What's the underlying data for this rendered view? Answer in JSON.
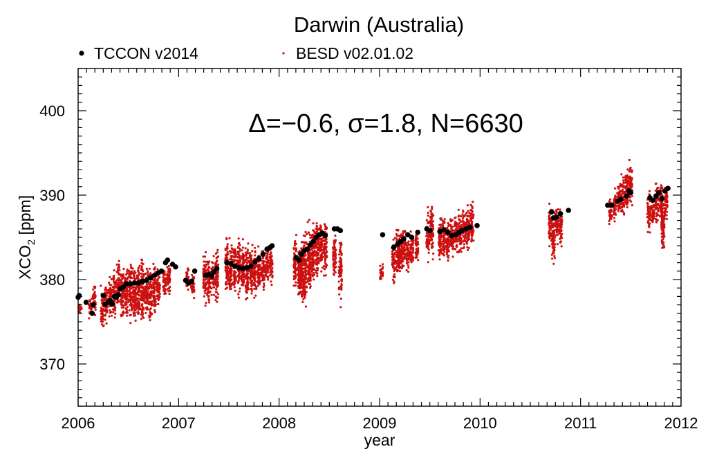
{
  "chart_data": {
    "type": "scatter",
    "title": "Darwin (Australia)",
    "xlabel": "year",
    "ylabel_main": "XCO",
    "ylabel_sub": "2",
    "ylabel_unit": " [ppm]",
    "annotation": "Δ=−0.6, σ=1.8, N=6630",
    "xlim": [
      2006,
      2012
    ],
    "ylim": [
      365,
      405
    ],
    "xticks": [
      2006,
      2007,
      2008,
      2009,
      2010,
      2011,
      2012
    ],
    "yticks": [
      370,
      380,
      390,
      400
    ],
    "legend": {
      "placement": "top-left",
      "entries": [
        "TCCON v2014",
        "BESD v02.01.02"
      ]
    },
    "colors": {
      "tccon": "#000000",
      "besd": "#cc1111"
    },
    "series": [
      {
        "name": "TCCON v2014",
        "marker": "large-dot",
        "points": [
          [
            2006.0,
            377.9
          ],
          [
            2006.01,
            378.1
          ],
          [
            2006.08,
            377.3
          ],
          [
            2006.14,
            376.0
          ],
          [
            2006.15,
            377.0
          ],
          [
            2006.25,
            378.1
          ],
          [
            2006.27,
            377.1
          ],
          [
            2006.3,
            377.3
          ],
          [
            2006.32,
            377.5
          ],
          [
            2006.34,
            377.1
          ],
          [
            2006.36,
            378.0
          ],
          [
            2006.38,
            377.9
          ],
          [
            2006.4,
            378.2
          ],
          [
            2006.42,
            378.9
          ],
          [
            2006.45,
            379.1
          ],
          [
            2006.48,
            379.5
          ],
          [
            2006.52,
            379.5
          ],
          [
            2006.56,
            379.6
          ],
          [
            2006.6,
            379.6
          ],
          [
            2006.64,
            379.8
          ],
          [
            2006.68,
            379.9
          ],
          [
            2006.72,
            380.2
          ],
          [
            2006.76,
            380.5
          ],
          [
            2006.8,
            380.8
          ],
          [
            2006.83,
            381.0
          ],
          [
            2006.87,
            382.0
          ],
          [
            2006.89,
            382.3
          ],
          [
            2006.94,
            381.8
          ],
          [
            2006.97,
            381.5
          ],
          [
            2007.07,
            379.9
          ],
          [
            2007.1,
            379.6
          ],
          [
            2007.13,
            379.8
          ],
          [
            2007.16,
            381.0
          ],
          [
            2007.27,
            380.5
          ],
          [
            2007.3,
            380.6
          ],
          [
            2007.33,
            380.4
          ],
          [
            2007.35,
            380.9
          ],
          [
            2007.38,
            381.3
          ],
          [
            2007.48,
            382.0
          ],
          [
            2007.52,
            381.9
          ],
          [
            2007.56,
            381.6
          ],
          [
            2007.6,
            381.4
          ],
          [
            2007.64,
            381.3
          ],
          [
            2007.68,
            381.4
          ],
          [
            2007.72,
            381.6
          ],
          [
            2007.76,
            382.1
          ],
          [
            2007.8,
            382.5
          ],
          [
            2007.84,
            383.0
          ],
          [
            2007.88,
            383.6
          ],
          [
            2007.91,
            383.8
          ],
          [
            2007.93,
            384.0
          ],
          [
            2008.17,
            382.6
          ],
          [
            2008.2,
            382.3
          ],
          [
            2008.22,
            383.0
          ],
          [
            2008.25,
            383.4
          ],
          [
            2008.28,
            383.6
          ],
          [
            2008.31,
            384.1
          ],
          [
            2008.34,
            384.5
          ],
          [
            2008.37,
            385.0
          ],
          [
            2008.4,
            385.3
          ],
          [
            2008.43,
            385.5
          ],
          [
            2008.46,
            385.2
          ],
          [
            2008.55,
            386.0
          ],
          [
            2008.58,
            386.0
          ],
          [
            2008.61,
            385.8
          ],
          [
            2009.03,
            385.3
          ],
          [
            2009.14,
            383.8
          ],
          [
            2009.18,
            384.2
          ],
          [
            2009.21,
            384.5
          ],
          [
            2009.24,
            384.8
          ],
          [
            2009.28,
            385.3
          ],
          [
            2009.32,
            385.0
          ],
          [
            2009.38,
            385.6
          ],
          [
            2009.47,
            386.0
          ],
          [
            2009.5,
            385.8
          ],
          [
            2009.6,
            385.7
          ],
          [
            2009.64,
            385.9
          ],
          [
            2009.68,
            385.6
          ],
          [
            2009.72,
            385.2
          ],
          [
            2009.76,
            385.3
          ],
          [
            2009.79,
            385.6
          ],
          [
            2009.82,
            385.8
          ],
          [
            2009.86,
            386.0
          ],
          [
            2009.9,
            386.2
          ],
          [
            2009.97,
            386.4
          ],
          [
            2010.71,
            388.0
          ],
          [
            2010.73,
            387.3
          ],
          [
            2010.76,
            387.4
          ],
          [
            2010.8,
            387.8
          ],
          [
            2010.88,
            388.2
          ],
          [
            2011.27,
            388.8
          ],
          [
            2011.31,
            388.8
          ],
          [
            2011.37,
            389.3
          ],
          [
            2011.4,
            389.5
          ],
          [
            2011.46,
            389.9
          ],
          [
            2011.48,
            390.5
          ],
          [
            2011.5,
            390.3
          ],
          [
            2011.69,
            389.7
          ],
          [
            2011.72,
            389.4
          ],
          [
            2011.75,
            389.9
          ],
          [
            2011.78,
            390.3
          ],
          [
            2011.81,
            389.6
          ],
          [
            2011.84,
            390.5
          ],
          [
            2011.87,
            390.8
          ]
        ]
      },
      {
        "name": "BESD v02.01.02",
        "marker": "small-dot",
        "sampling": "vertical scatter at each date x, spanning ylow..yhigh",
        "columns": [
          [
            2006.02,
            375.5,
            377.5
          ],
          [
            2006.12,
            375.0,
            378.5
          ],
          [
            2006.16,
            375.0,
            380.0
          ],
          [
            2006.24,
            373.5,
            379.5
          ],
          [
            2006.28,
            374.5,
            380.0
          ],
          [
            2006.32,
            375.0,
            381.0
          ],
          [
            2006.36,
            375.0,
            381.5
          ],
          [
            2006.4,
            375.5,
            383.0
          ],
          [
            2006.44,
            374.5,
            382.5
          ],
          [
            2006.48,
            374.5,
            382.5
          ],
          [
            2006.52,
            374.0,
            383.0
          ],
          [
            2006.56,
            373.5,
            382.0
          ],
          [
            2006.6,
            374.0,
            383.0
          ],
          [
            2006.64,
            373.5,
            384.0
          ],
          [
            2006.68,
            375.0,
            382.5
          ],
          [
            2006.72,
            374.5,
            382.0
          ],
          [
            2006.76,
            375.0,
            382.5
          ],
          [
            2006.8,
            376.0,
            382.5
          ],
          [
            2006.86,
            377.0,
            382.0
          ],
          [
            2006.9,
            377.5,
            383.0
          ],
          [
            2007.09,
            378.0,
            382.0
          ],
          [
            2007.14,
            377.5,
            381.5
          ],
          [
            2007.26,
            376.5,
            384.0
          ],
          [
            2007.3,
            376.5,
            383.5
          ],
          [
            2007.34,
            377.5,
            383.0
          ],
          [
            2007.38,
            376.5,
            384.5
          ],
          [
            2007.48,
            377.0,
            386.0
          ],
          [
            2007.52,
            377.5,
            385.5
          ],
          [
            2007.56,
            377.5,
            385.5
          ],
          [
            2007.6,
            377.5,
            386.0
          ],
          [
            2007.64,
            377.0,
            385.0
          ],
          [
            2007.68,
            376.5,
            385.0
          ],
          [
            2007.72,
            377.0,
            385.0
          ],
          [
            2007.76,
            377.5,
            384.5
          ],
          [
            2007.8,
            378.0,
            384.5
          ],
          [
            2007.84,
            378.0,
            384.0
          ],
          [
            2007.88,
            379.0,
            384.5
          ],
          [
            2007.92,
            379.0,
            384.5
          ],
          [
            2008.16,
            378.0,
            386.0
          ],
          [
            2008.2,
            376.5,
            385.5
          ],
          [
            2008.23,
            376.0,
            386.5
          ],
          [
            2008.26,
            375.5,
            387.0
          ],
          [
            2008.3,
            376.5,
            387.5
          ],
          [
            2008.34,
            378.5,
            388.0
          ],
          [
            2008.38,
            379.0,
            388.0
          ],
          [
            2008.42,
            380.0,
            388.0
          ],
          [
            2008.46,
            380.0,
            387.5
          ],
          [
            2008.55,
            379.5,
            386.0
          ],
          [
            2008.61,
            376.5,
            386.0
          ],
          [
            2009.02,
            379.5,
            382.0
          ],
          [
            2009.14,
            379.0,
            385.5
          ],
          [
            2009.18,
            379.5,
            387.0
          ],
          [
            2009.21,
            380.0,
            387.0
          ],
          [
            2009.24,
            380.5,
            386.5
          ],
          [
            2009.28,
            380.5,
            386.0
          ],
          [
            2009.32,
            381.0,
            386.5
          ],
          [
            2009.37,
            381.0,
            387.0
          ],
          [
            2009.48,
            381.5,
            389.0
          ],
          [
            2009.52,
            382.0,
            390.0
          ],
          [
            2009.6,
            381.5,
            388.5
          ],
          [
            2009.64,
            382.0,
            388.0
          ],
          [
            2009.68,
            381.5,
            387.5
          ],
          [
            2009.72,
            382.0,
            388.5
          ],
          [
            2009.76,
            382.5,
            388.5
          ],
          [
            2009.8,
            382.5,
            389.0
          ],
          [
            2009.84,
            383.0,
            389.0
          ],
          [
            2009.88,
            383.0,
            389.5
          ],
          [
            2009.92,
            383.5,
            390.0
          ],
          [
            2010.7,
            383.0,
            389.5
          ],
          [
            2010.73,
            381.0,
            389.0
          ],
          [
            2010.76,
            384.0,
            389.0
          ],
          [
            2010.8,
            383.0,
            389.0
          ],
          [
            2011.3,
            386.0,
            390.0
          ],
          [
            2011.34,
            386.5,
            391.0
          ],
          [
            2011.38,
            387.0,
            392.5
          ],
          [
            2011.42,
            387.0,
            393.0
          ],
          [
            2011.46,
            387.5,
            394.0
          ],
          [
            2011.5,
            388.0,
            394.5
          ],
          [
            2011.68,
            385.0,
            391.5
          ],
          [
            2011.72,
            385.5,
            390.5
          ],
          [
            2011.76,
            386.0,
            392.0
          ],
          [
            2011.8,
            386.0,
            392.5
          ],
          [
            2011.82,
            382.0,
            391.0
          ],
          [
            2011.85,
            386.5,
            392.0
          ]
        ]
      }
    ]
  }
}
